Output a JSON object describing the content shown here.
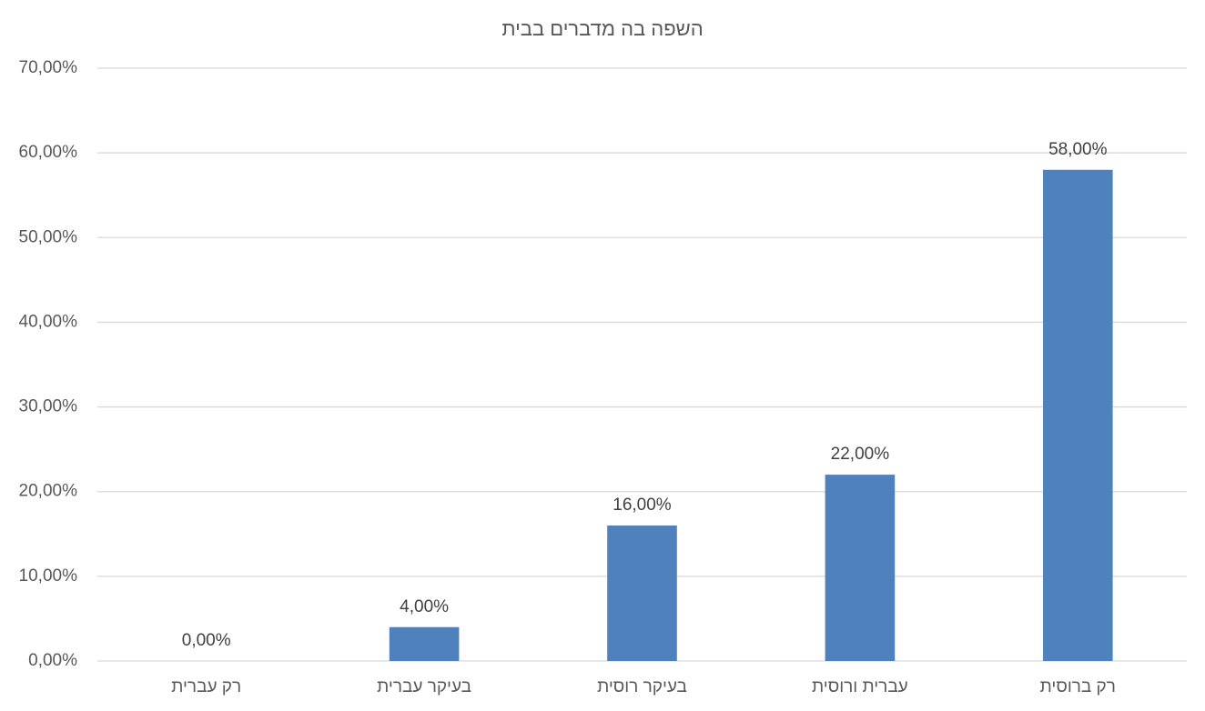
{
  "chart_data": {
    "type": "bar",
    "title": "השפה בה מדברים בבית",
    "categories": [
      "רק עברית",
      "בעיקר עברית",
      "בעיקר רוסית",
      "עברית ורוסית",
      "רק ברוסית"
    ],
    "values": [
      0,
      4,
      16,
      22,
      58
    ],
    "value_labels": [
      "0,00%",
      "4,00%",
      "16,00%",
      "22,00%",
      "58,00%"
    ],
    "color": "#4f81bd",
    "ylim": [
      0,
      70
    ],
    "yticks": [
      {
        "value": 0,
        "label": "0,00%"
      },
      {
        "value": 10,
        "label": "10,00%"
      },
      {
        "value": 20,
        "label": "20,00%"
      },
      {
        "value": 30,
        "label": "30,00%"
      },
      {
        "value": 40,
        "label": "40,00%"
      },
      {
        "value": 50,
        "label": "50,00%"
      },
      {
        "value": 60,
        "label": "60,00%"
      },
      {
        "value": 70,
        "label": "70,00%"
      }
    ],
    "grid": true
  }
}
